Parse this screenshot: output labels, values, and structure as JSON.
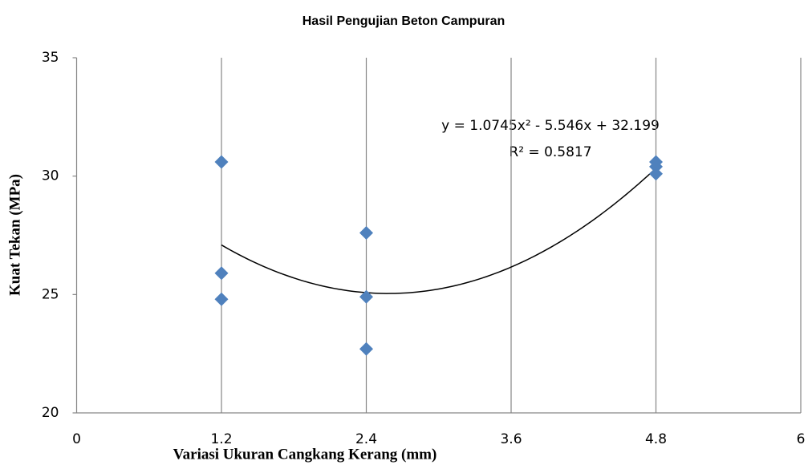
{
  "chart_data": {
    "type": "scatter",
    "title": "Hasil Pengujian Beton Campuran",
    "x_label": "Variasi Ukuran Cangkang Kerang (mm)",
    "y_label": "Kuat Tekan (MPa)",
    "series": [
      {
        "name": "Kuat Tekan",
        "color": "#4f81bd",
        "x": [
          1.2,
          1.2,
          1.2,
          2.4,
          2.4,
          2.4,
          4.8,
          4.8,
          4.8
        ],
        "values": [
          30.6,
          25.9,
          24.8,
          27.6,
          24.9,
          22.7,
          30.6,
          30.4,
          30.1
        ]
      }
    ],
    "trendline": {
      "type": "polynomial",
      "coefficients": [
        1.0745,
        -5.546,
        32.199
      ],
      "x_range": [
        1.2,
        4.8
      ],
      "color": "#000000",
      "label": "y = 1.0745x² - 5.546x + 32.199",
      "r2_label": "R² = 0.5817"
    },
    "xlim": [
      0,
      6
    ],
    "xticks": [
      0,
      1.2,
      2.4,
      3.6,
      4.8,
      6
    ],
    "ylim": [
      20,
      35
    ],
    "yticks": [
      20,
      25,
      30,
      35
    ],
    "grid": "x"
  }
}
